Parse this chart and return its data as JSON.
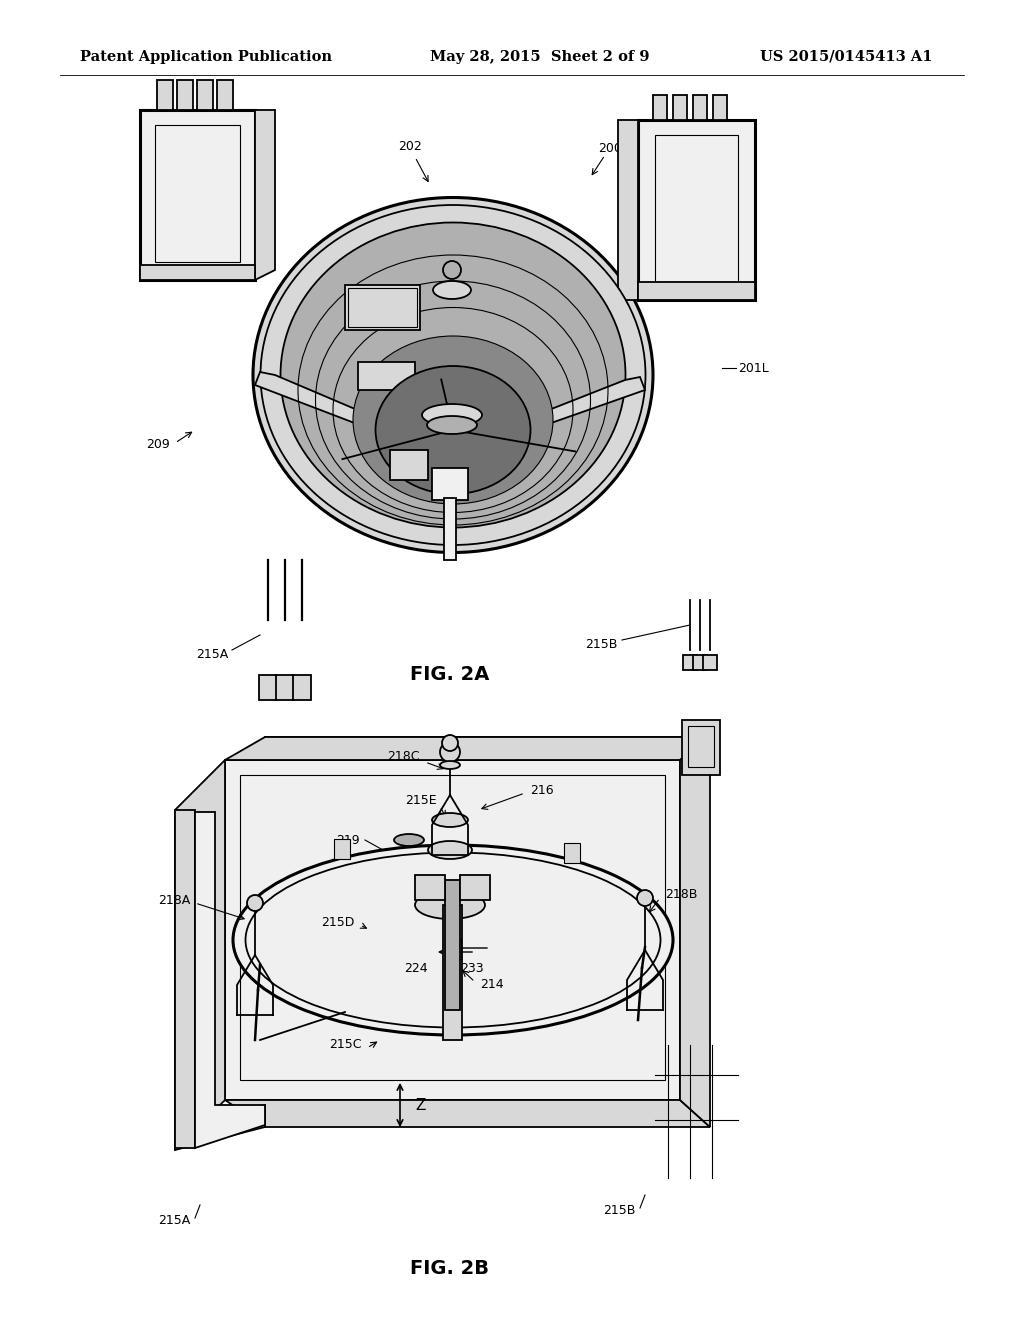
{
  "background_color": "#ffffff",
  "header_left": "Patent Application Publication",
  "header_center": "May 28, 2015  Sheet 2 of 9",
  "header_right": "US 2015/0145413 A1",
  "line_color": "#000000",
  "lw": 1.3,
  "tlw": 0.8,
  "thklw": 2.2,
  "label_fontsize": 9.0,
  "fig_label_fontsize": 14,
  "header_fontsize": 10.5,
  "fig2a_label": "FIG. 2A",
  "fig2b_label": "FIG. 2B",
  "gray_light": "#f0f0f0",
  "gray_mid": "#d8d8d8",
  "gray_dark": "#b0b0b0",
  "gray_darker": "#888888"
}
